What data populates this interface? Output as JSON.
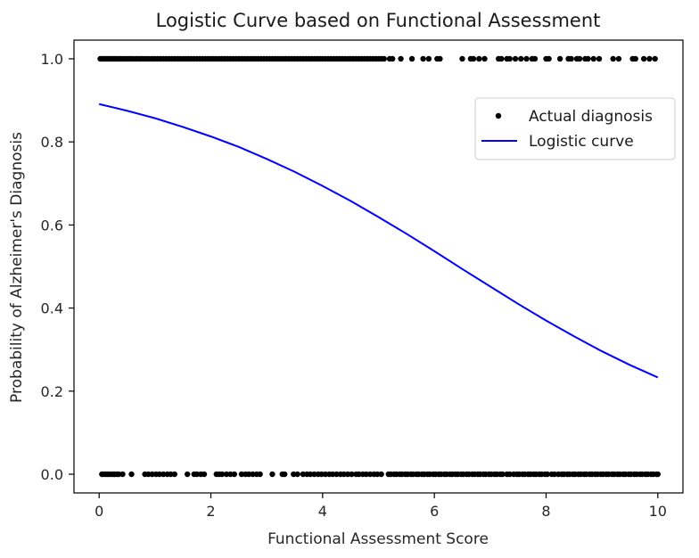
{
  "chart_data": {
    "type": "scatter",
    "title": "Logistic Curve based on Functional Assessment",
    "xlabel": "Functional Assessment Score",
    "ylabel": "Probability of Alzheimer's Diagnosis",
    "xlim": [
      -0.45,
      10.45
    ],
    "ylim": [
      -0.045,
      1.045
    ],
    "xticks": [
      0,
      2,
      4,
      6,
      8,
      10
    ],
    "xtick_labels": [
      "0",
      "2",
      "4",
      "6",
      "8",
      "10"
    ],
    "yticks": [
      0.0,
      0.2,
      0.4,
      0.6,
      0.8,
      1.0
    ],
    "ytick_labels": [
      "0.0",
      "0.2",
      "0.4",
      "0.6",
      "0.8",
      "1.0"
    ],
    "grid": false,
    "legend_position": "upper right",
    "series": [
      {
        "name": "Actual diagnosis",
        "kind": "scatter",
        "color": "#000000",
        "points_y1": [
          0.02,
          0.05,
          0.09,
          0.12,
          0.16,
          0.19,
          0.23,
          0.27,
          0.3,
          0.34,
          0.38,
          0.42,
          0.46,
          0.5,
          0.54,
          0.58,
          0.62,
          0.67,
          0.72,
          0.76,
          0.8,
          0.85,
          0.9,
          0.95,
          1.0,
          1.05,
          1.1,
          1.15,
          1.2,
          1.25,
          1.3,
          1.35,
          1.4,
          1.45,
          1.5,
          1.55,
          1.6,
          1.65,
          1.7,
          1.75,
          1.8,
          1.85,
          1.9,
          1.95,
          2.0,
          2.05,
          2.1,
          2.15,
          2.2,
          2.25,
          2.3,
          2.35,
          2.4,
          2.45,
          2.5,
          2.55,
          2.6,
          2.65,
          2.7,
          2.75,
          2.8,
          2.85,
          2.9,
          2.95,
          3.0,
          3.05,
          3.1,
          3.15,
          3.2,
          3.25,
          3.3,
          3.35,
          3.4,
          3.45,
          3.5,
          3.55,
          3.6,
          3.65,
          3.7,
          3.75,
          3.8,
          3.85,
          3.9,
          3.95,
          4.0,
          4.05,
          4.1,
          4.15,
          4.2,
          4.25,
          4.3,
          4.35,
          4.4,
          4.45,
          4.5,
          4.55,
          4.6,
          4.65,
          4.7,
          4.75,
          4.8,
          4.85,
          4.9,
          4.95,
          5.0,
          5.05,
          5.1,
          5.2,
          5.25,
          5.4,
          5.6,
          5.8,
          5.9,
          6.05,
          6.1,
          6.5,
          6.65,
          6.7,
          6.8,
          6.9,
          7.15,
          7.2,
          7.3,
          7.35,
          7.45,
          7.55,
          7.65,
          7.75,
          7.8,
          8.0,
          8.05,
          8.25,
          8.4,
          8.45,
          8.55,
          8.6,
          8.7,
          8.75,
          8.85,
          8.95,
          9.2,
          9.3,
          9.55,
          9.6,
          9.75,
          9.85,
          9.95
        ],
        "points_y0": [
          0.05,
          0.08,
          0.12,
          0.15,
          0.18,
          0.22,
          0.25,
          0.28,
          0.32,
          0.35,
          0.42,
          0.58,
          0.82,
          0.88,
          0.95,
          1.02,
          1.08,
          1.15,
          1.22,
          1.28,
          1.35,
          1.58,
          1.7,
          1.75,
          1.82,
          1.88,
          2.1,
          2.15,
          2.2,
          2.28,
          2.35,
          2.42,
          2.55,
          2.62,
          2.68,
          2.75,
          2.82,
          2.88,
          3.1,
          3.28,
          3.32,
          3.48,
          3.55,
          3.65,
          3.72,
          3.78,
          3.85,
          3.92,
          3.98,
          4.05,
          4.12,
          4.18,
          4.25,
          4.32,
          4.38,
          4.45,
          4.52,
          4.6,
          4.65,
          4.72,
          4.78,
          4.85,
          4.92,
          4.98,
          5.05,
          5.18,
          5.22,
          5.28,
          5.32,
          5.38,
          5.42,
          5.48,
          5.52,
          5.58,
          5.62,
          5.68,
          5.72,
          5.78,
          5.82,
          5.88,
          5.92,
          5.98,
          6.02,
          6.08,
          6.12,
          6.18,
          6.22,
          6.28,
          6.32,
          6.38,
          6.42,
          6.48,
          6.52,
          6.58,
          6.62,
          6.68,
          6.72,
          6.78,
          6.82,
          6.88,
          6.92,
          6.98,
          7.02,
          7.08,
          7.12,
          7.18,
          7.22,
          7.3,
          7.35,
          7.42,
          7.48,
          7.52,
          7.58,
          7.62,
          7.68,
          7.72,
          7.78,
          7.82,
          7.88,
          7.92,
          7.98,
          8.02,
          8.1,
          8.15,
          8.22,
          8.28,
          8.32,
          8.38,
          8.42,
          8.48,
          8.52,
          8.58,
          8.62,
          8.68,
          8.72,
          8.78,
          8.82,
          8.88,
          8.92,
          8.98,
          9.02,
          9.08,
          9.12,
          9.18,
          9.22,
          9.28,
          9.32,
          9.38,
          9.42,
          9.48,
          9.52,
          9.58,
          9.62,
          9.68,
          9.72,
          9.78,
          9.82,
          9.88,
          9.92,
          9.98,
          10.0
        ]
      },
      {
        "name": "Logistic curve",
        "kind": "line",
        "color": "#0000ff",
        "x": [
          0.0,
          0.5,
          1.0,
          1.5,
          2.0,
          2.5,
          3.0,
          3.5,
          4.0,
          4.5,
          5.0,
          5.5,
          6.0,
          6.5,
          7.0,
          7.5,
          8.0,
          8.5,
          9.0,
          9.5,
          10.0
        ],
        "y": [
          0.891,
          0.875,
          0.857,
          0.836,
          0.813,
          0.788,
          0.759,
          0.728,
          0.694,
          0.658,
          0.619,
          0.579,
          0.537,
          0.494,
          0.452,
          0.41,
          0.37,
          0.332,
          0.296,
          0.263,
          0.233
        ]
      }
    ]
  }
}
